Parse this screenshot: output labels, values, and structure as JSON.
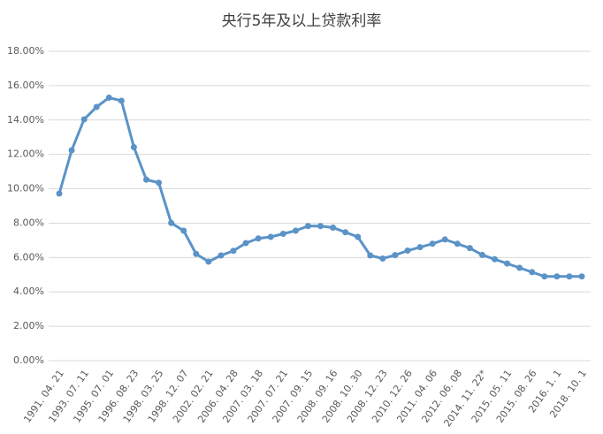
{
  "chart_data": {
    "type": "line",
    "title": "央行5年及以上贷款利率",
    "categories": [
      "1991. 04. 21",
      null,
      "1993. 07. 11",
      null,
      "1995. 07. 01",
      null,
      "1996. 08. 23",
      null,
      "1998. 03. 25",
      null,
      "1998. 12. 07",
      null,
      "2002. 02. 21",
      null,
      "2006. 04. 28",
      null,
      "2007. 03. 18",
      null,
      "2007. 07. 21",
      null,
      "2007. 09. 15",
      null,
      "2008. 09. 16",
      null,
      "2008. 10. 30",
      null,
      "2008. 12. 23",
      null,
      "2010. 12. 26",
      null,
      "2011. 04. 06",
      null,
      "2012. 06. 08",
      null,
      "2014. 11. 22*",
      null,
      "2015. 05. 11",
      null,
      "2015. 08. 26",
      null,
      "2016. 1. 1",
      null,
      "2018. 10. 1"
    ],
    "series": [
      {
        "color": "#5b93c8",
        "values": [
          9.72,
          12.24,
          14.04,
          14.76,
          15.3,
          15.12,
          12.42,
          10.53,
          10.35,
          8.01,
          7.56,
          6.21,
          5.76,
          6.12,
          6.39,
          6.84,
          7.11,
          7.2,
          7.38,
          7.56,
          7.83,
          7.83,
          7.74,
          7.47,
          7.2,
          6.12,
          5.94,
          6.14,
          6.4,
          6.6,
          6.8,
          7.05,
          6.8,
          6.55,
          6.15,
          5.9,
          5.65,
          5.4,
          5.15,
          4.9,
          4.9,
          4.9,
          4.9
        ]
      }
    ],
    "ylim": [
      0,
      18
    ],
    "yticks": [
      {
        "value": 0,
        "label": "0.00%"
      },
      {
        "value": 2,
        "label": "2.00%"
      },
      {
        "value": 4,
        "label": "4.00%"
      },
      {
        "value": 6,
        "label": "6.00%"
      },
      {
        "value": 8,
        "label": "8.00%"
      },
      {
        "value": 10,
        "label": "10.00%"
      },
      {
        "value": 12,
        "label": "12.00%"
      },
      {
        "value": 14,
        "label": "14.00%"
      },
      {
        "value": 16,
        "label": "16.00%"
      },
      {
        "value": 18,
        "label": "18.00%"
      }
    ],
    "grid": true
  }
}
